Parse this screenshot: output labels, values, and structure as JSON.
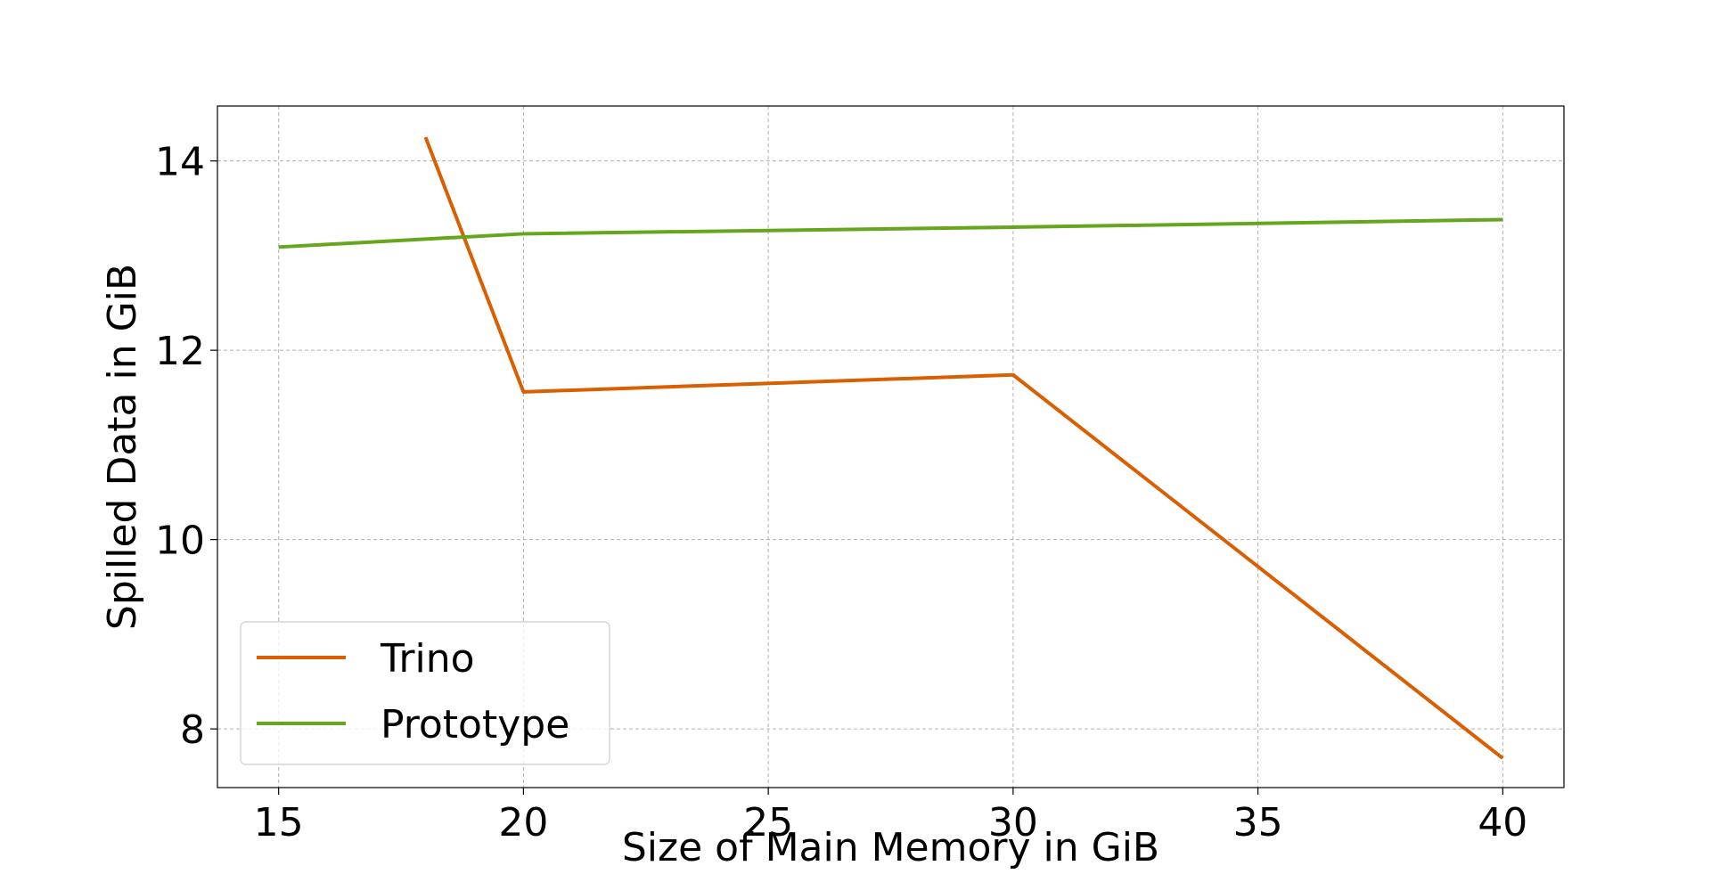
{
  "chart_data": {
    "type": "line",
    "title": "",
    "xlabel": "Size of Main Memory in GiB",
    "ylabel": "Spilled Data in GiB",
    "xlim": [
      13.75,
      41.25
    ],
    "ylim": [
      7.38,
      14.58
    ],
    "xticks": [
      15,
      20,
      25,
      30,
      35,
      40
    ],
    "yticks": [
      8,
      10,
      12,
      14
    ],
    "xtick_labels": [
      "15",
      "20",
      "25",
      "30",
      "35",
      "40"
    ],
    "ytick_labels": [
      "8",
      "10",
      "12",
      "14"
    ],
    "grid": true,
    "legend_position": "lower-left",
    "series": [
      {
        "name": "Trino",
        "color": "#d95f02",
        "x": [
          18,
          20,
          30,
          40
        ],
        "y": [
          14.25,
          11.56,
          11.74,
          7.69
        ]
      },
      {
        "name": "Prototype",
        "color": "#66a61e",
        "x": [
          15,
          20,
          30,
          40
        ],
        "y": [
          13.09,
          13.23,
          13.3,
          13.38
        ]
      }
    ]
  }
}
